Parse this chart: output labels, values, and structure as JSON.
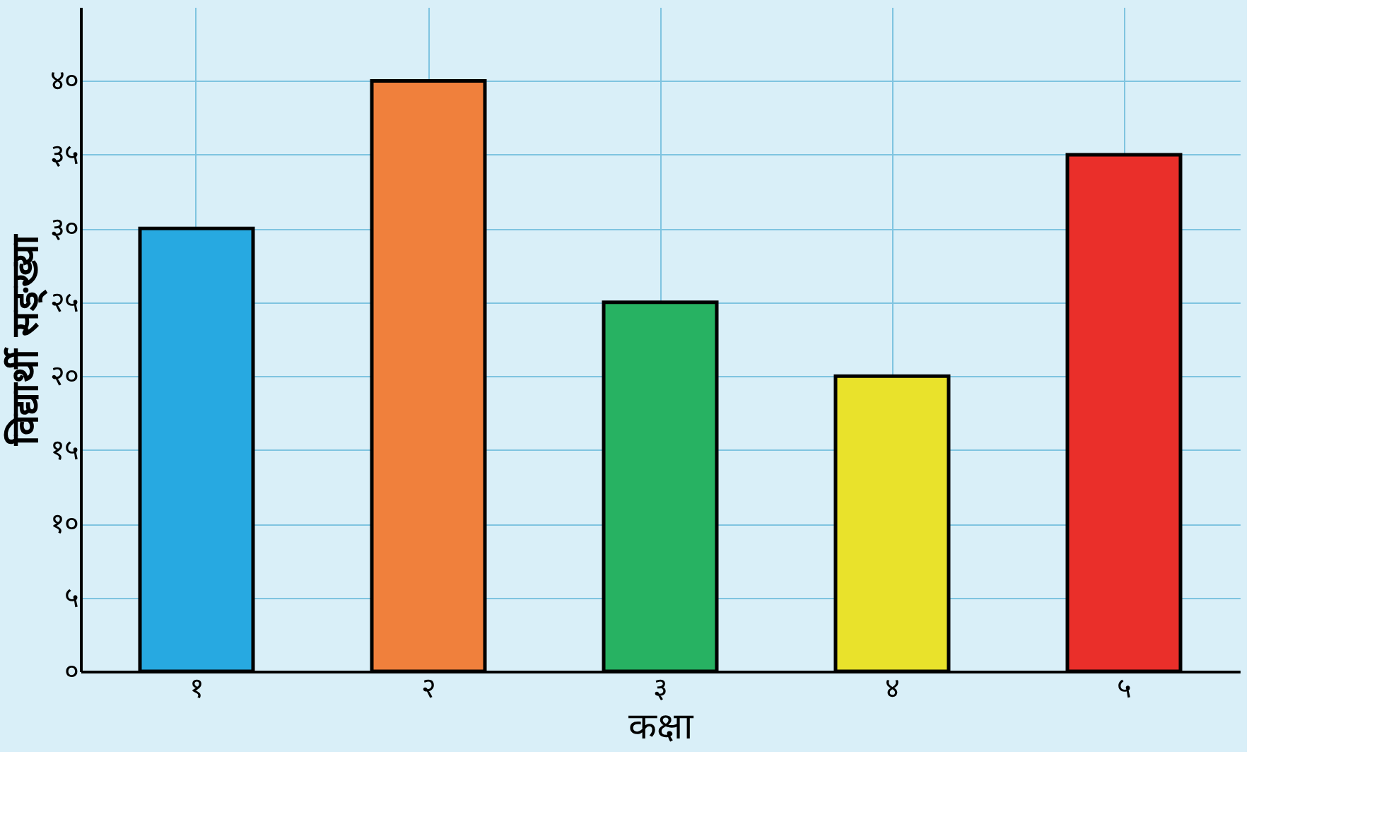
{
  "chart_data": {
    "type": "bar",
    "xlabel": "कक्षा",
    "ylabel": "विद्यार्थी सङ्ख्या",
    "categories": [
      "१",
      "२",
      "३",
      "४",
      "५"
    ],
    "values": [
      30,
      40,
      25,
      20,
      35
    ],
    "colors": [
      "#27a9e1",
      "#f0803c",
      "#27b262",
      "#e9e22b",
      "#ea2f2a"
    ],
    "ylim": [
      0,
      45
    ],
    "yticks": [
      {
        "value": 0,
        "label": "०"
      },
      {
        "value": 5,
        "label": "५"
      },
      {
        "value": 10,
        "label": "१०"
      },
      {
        "value": 15,
        "label": "१५"
      },
      {
        "value": 20,
        "label": "२०"
      },
      {
        "value": 25,
        "label": "२५"
      },
      {
        "value": 30,
        "label": "३०"
      },
      {
        "value": 35,
        "label": "३५"
      },
      {
        "value": 40,
        "label": "४०"
      }
    ],
    "grid": true
  }
}
